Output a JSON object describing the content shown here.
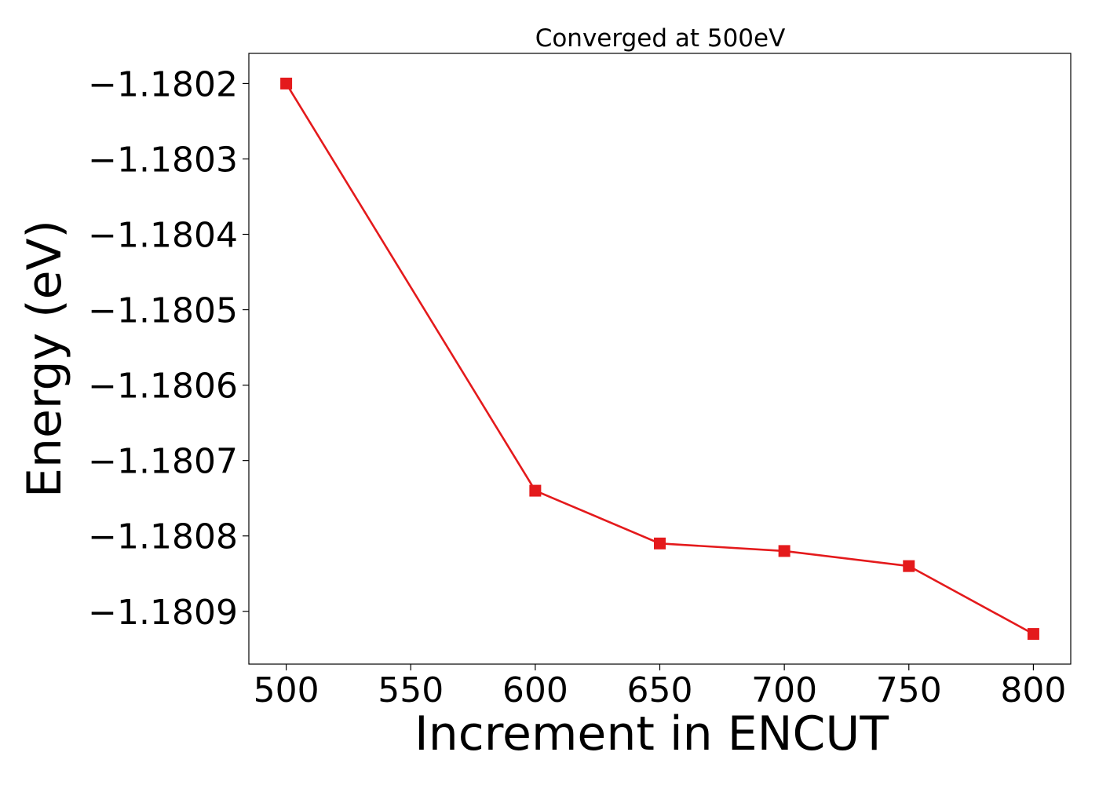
{
  "chart_data": {
    "type": "line",
    "title": "Converged at 500eV",
    "xlabel": "Increment in ENCUT",
    "ylabel": "Energy (eV)",
    "x": [
      500,
      600,
      650,
      700,
      750,
      800
    ],
    "series": [
      {
        "values": [
          -1.1802,
          -1.18074,
          -1.18081,
          -1.18082,
          -1.18084,
          -1.18093
        ],
        "color": "#e41a1c",
        "marker": "square"
      }
    ],
    "xticks": [
      500,
      550,
      600,
      650,
      700,
      750,
      800
    ],
    "xtick_labels": [
      "500",
      "550",
      "600",
      "650",
      "700",
      "750",
      "800"
    ],
    "yticks": [
      -1.1802,
      -1.1803,
      -1.1804,
      -1.1805,
      -1.1806,
      -1.1807,
      -1.1808,
      -1.1809
    ],
    "ytick_labels": [
      "−1.1802",
      "−1.1803",
      "−1.1804",
      "−1.1805",
      "−1.1806",
      "−1.1807",
      "−1.1808",
      "−1.1809"
    ],
    "xlim": [
      485,
      815
    ],
    "ylim": [
      -1.18097,
      -1.18016
    ],
    "grid": false,
    "legend": "none"
  }
}
